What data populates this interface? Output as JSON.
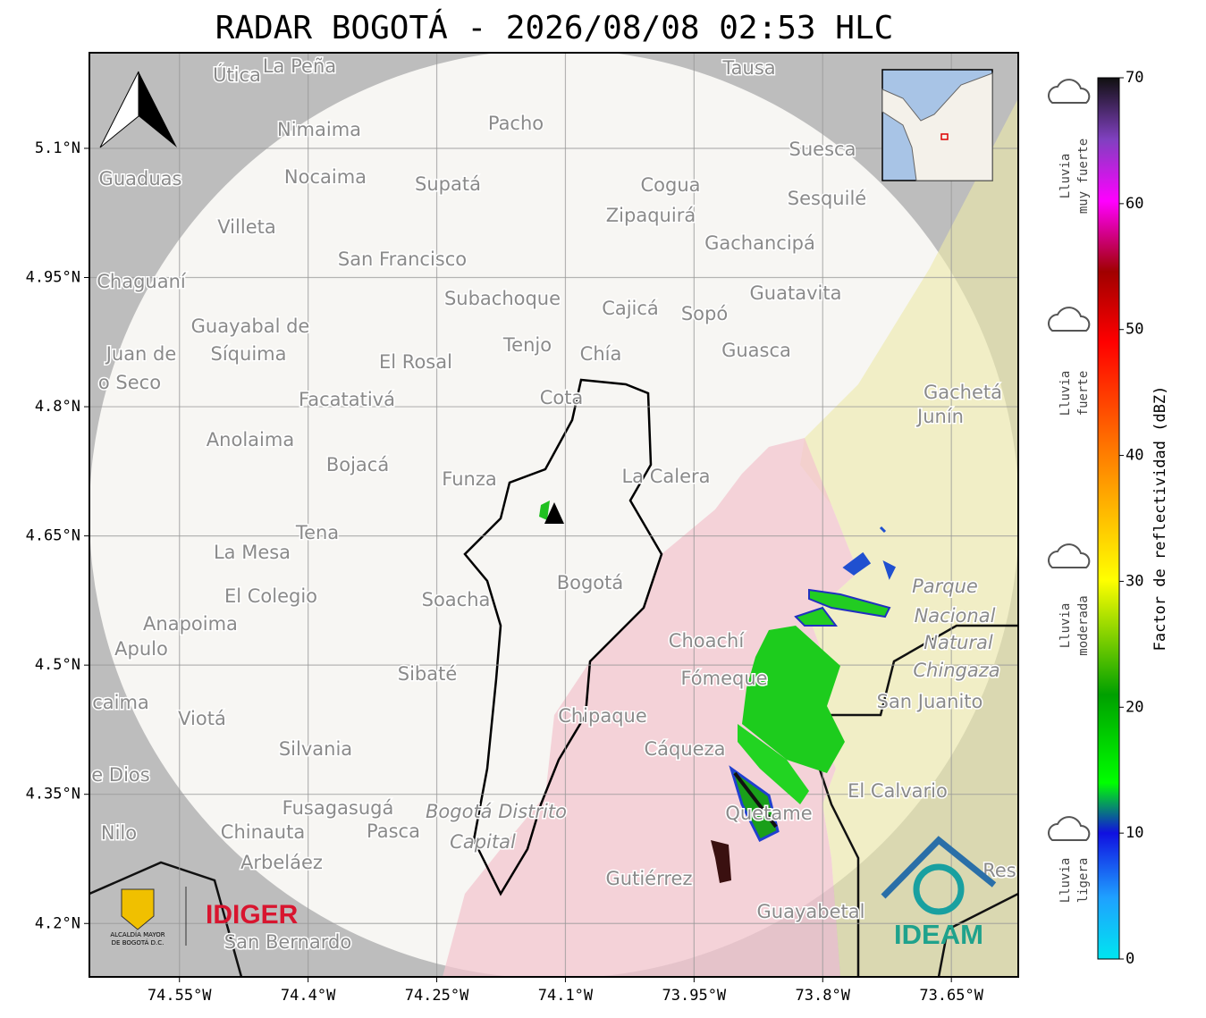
{
  "title": "RADAR BOGOTÁ - 2026/08/08 02:53 HLC",
  "map": {
    "xlim": [
      -74.655,
      -73.572
    ],
    "ylim": [
      4.138,
      5.211
    ],
    "xticks": [
      {
        "value": -74.55,
        "label": "74.55°W"
      },
      {
        "value": -74.4,
        "label": "74.4°W"
      },
      {
        "value": -74.25,
        "label": "74.25°W"
      },
      {
        "value": -74.1,
        "label": "74.1°W"
      },
      {
        "value": -73.95,
        "label": "73.95°W"
      },
      {
        "value": -73.8,
        "label": "73.8°W"
      },
      {
        "value": -73.65,
        "label": "73.65°W"
      }
    ],
    "yticks": [
      {
        "value": 5.1,
        "label": "5.1°N"
      },
      {
        "value": 4.95,
        "label": "4.95°N"
      },
      {
        "value": 4.8,
        "label": "4.8°N"
      },
      {
        "value": 4.65,
        "label": "4.65°N"
      },
      {
        "value": 4.5,
        "label": "4.5°N"
      },
      {
        "value": 4.35,
        "label": "4.35°N"
      },
      {
        "value": 4.2,
        "label": "4.2°N"
      }
    ],
    "north": "N",
    "places": [
      "Útica",
      "La Peña",
      "Tausa",
      "Pacho",
      "Nimaima",
      "Suesca",
      "Guaduas",
      "Nocaima",
      "Supatá",
      "Cogua",
      "Sesquilé",
      "Zipaquirá",
      "Villeta",
      "Gachancipá",
      "San Francisco",
      "Chaguaní",
      "Guatavita",
      "Subachoque",
      "Cajicá",
      "Sopó",
      "Guayabal de",
      "Síquima",
      "Juan de",
      "Tenjo",
      "Guasca",
      "Chía",
      "El Rosal",
      "o Seco",
      "Facatativá",
      "Cota",
      "Gachetá",
      "Junín",
      "Anolaima",
      "Bojacá",
      "Funza",
      "La Calera",
      "Tena",
      "La Mesa",
      "Bogotá",
      "Parque",
      "Soacha",
      "El Colegio",
      "Nacional",
      "Anapoima",
      "Apulo",
      "Choachí",
      "Natural",
      "Chingaza",
      "Sibaté",
      "Fómeque",
      "San Juanito",
      "caima",
      "Viotá",
      "Chipaque",
      "Silvania",
      "Cáqueza",
      "e Dios",
      "El Calvario",
      "Fusagasugá",
      "Bogotá Distrito",
      "Quetame",
      "Nilo",
      "Chinauta",
      "Pasca",
      "Capital",
      "Arbeláez",
      "Gutiérrez",
      "Res",
      "Guayabetal",
      "San Bernardo"
    ]
  },
  "logos": {
    "alcaldia": [
      "ALCALDÍA MAYOR",
      "DE BOGOTÁ D.C."
    ],
    "idiger": "IDIGER",
    "ideam": "IDEAM"
  },
  "colorbar": {
    "label": "Factor de reflectividad (dBZ)",
    "lim": [
      0,
      70
    ],
    "ticks": [
      0,
      10,
      20,
      30,
      40,
      50,
      60,
      70
    ]
  },
  "legend": [
    [
      "Lluvia",
      "muy fuerte"
    ],
    [
      "Lluvia",
      "fuerte"
    ],
    [
      "Lluvia",
      "moderada"
    ],
    [
      "Lluvia",
      "ligera"
    ]
  ]
}
